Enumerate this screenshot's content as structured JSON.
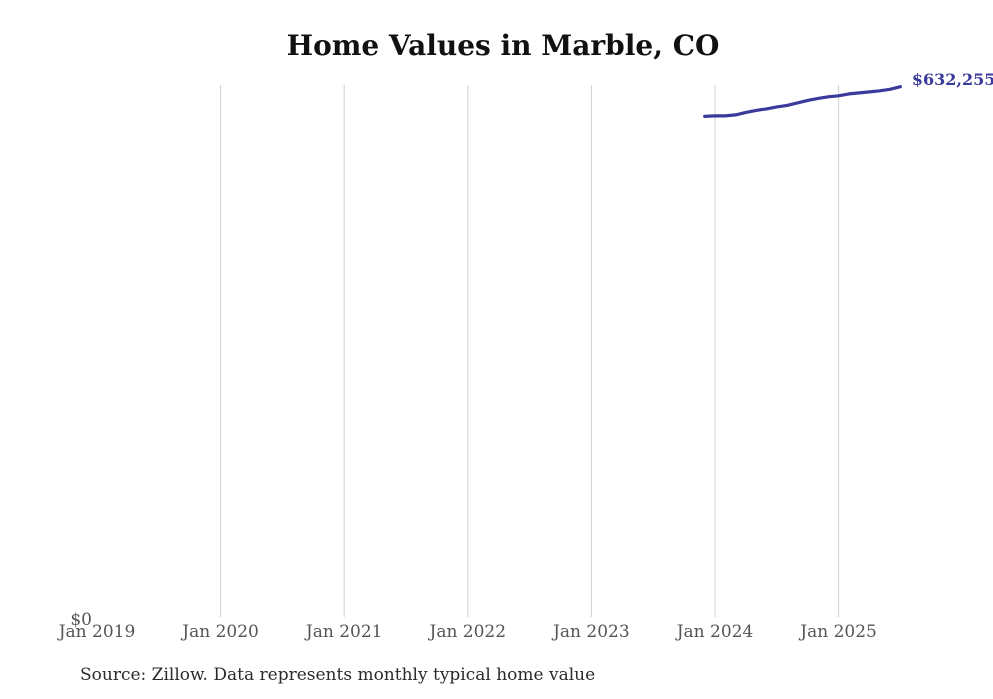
{
  "title": "Home Values in Marble, CO",
  "source_note": "Source: Zillow. Data represents monthly typical home value",
  "colors": {
    "background": "#ffffff",
    "title": "#111111",
    "gridline": "#cfcfcf",
    "tick_label": "#555555",
    "zero_label": "#555555",
    "line": "#3a3a9c",
    "end_label": "#3a3a9c",
    "source_text": "#2b2b2b"
  },
  "chart_data": {
    "type": "line",
    "title": "Home Values in Marble, CO",
    "xlabel": "",
    "ylabel": "",
    "x_axis": {
      "base_year": 2019,
      "tick_labels": [
        "Jan 2019",
        "Jan 2020",
        "Jan 2021",
        "Jan 2022",
        "Jan 2023",
        "Jan 2024",
        "Jan 2025"
      ],
      "gridlines": "vertical, at each January tick except Jan 2019"
    },
    "y_axis": {
      "zero_label": "$0",
      "ylim": [
        0,
        645000
      ],
      "gridlines": "none"
    },
    "legend": "none",
    "series": [
      {
        "name": "Monthly typical home value",
        "end_label": "$632,255",
        "end_value": 632255,
        "points": [
          {
            "date": "2023-12",
            "value": 597100
          },
          {
            "date": "2024-01",
            "value": 597700
          },
          {
            "date": "2024-02",
            "value": 597700
          },
          {
            "date": "2024-03",
            "value": 598900
          },
          {
            "date": "2024-04",
            "value": 601900
          },
          {
            "date": "2024-05",
            "value": 604200
          },
          {
            "date": "2024-06",
            "value": 606000
          },
          {
            "date": "2024-07",
            "value": 608400
          },
          {
            "date": "2024-08",
            "value": 610200
          },
          {
            "date": "2024-09",
            "value": 613100
          },
          {
            "date": "2024-10",
            "value": 616100
          },
          {
            "date": "2024-11",
            "value": 618500
          },
          {
            "date": "2024-12",
            "value": 620300
          },
          {
            "date": "2025-01",
            "value": 621500
          },
          {
            "date": "2025-02",
            "value": 623800
          },
          {
            "date": "2025-03",
            "value": 625000
          },
          {
            "date": "2025-04",
            "value": 626200
          },
          {
            "date": "2025-05",
            "value": 627400
          },
          {
            "date": "2025-06",
            "value": 629200
          },
          {
            "date": "2025-07",
            "value": 632255
          }
        ]
      }
    ]
  }
}
